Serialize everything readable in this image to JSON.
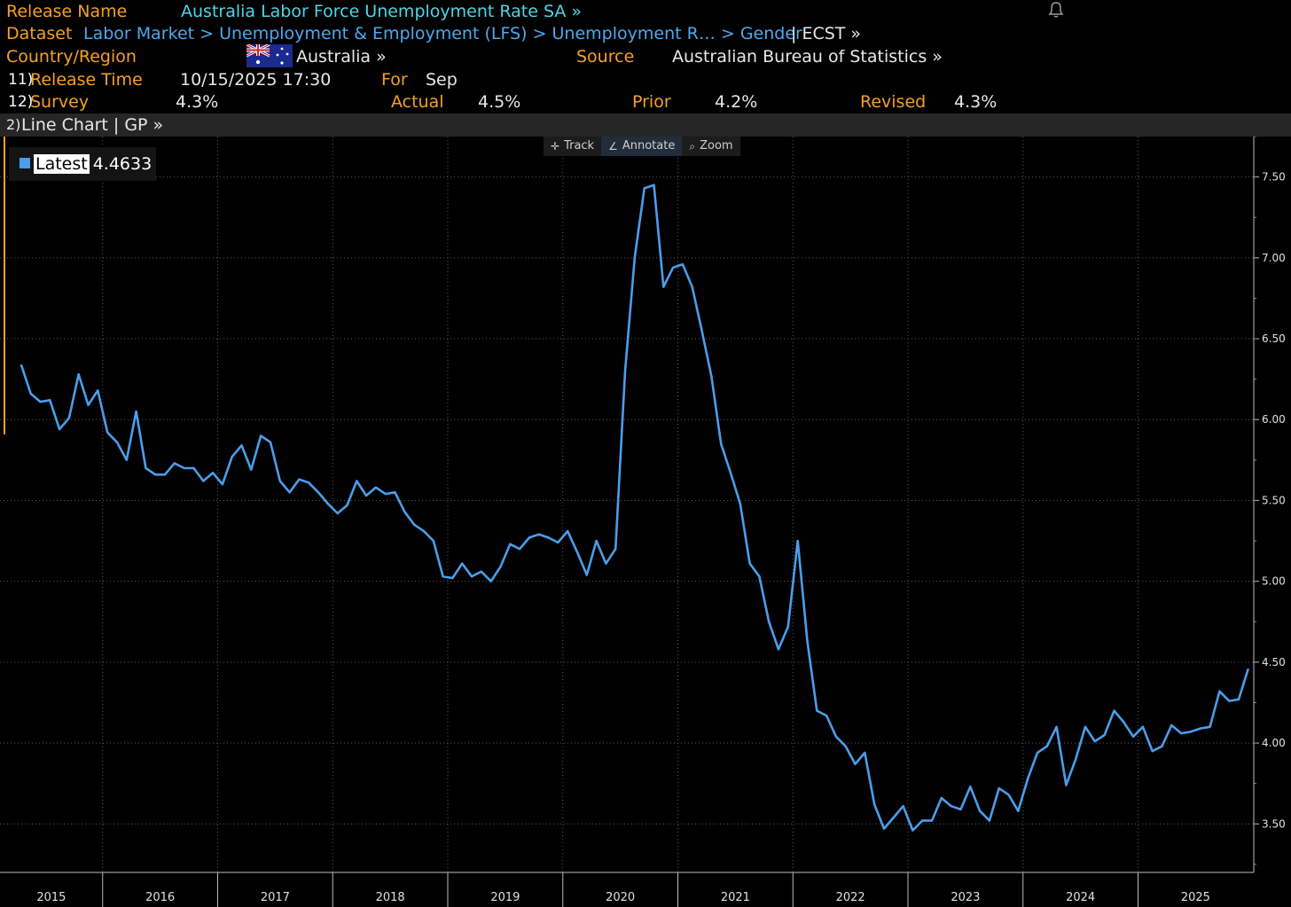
{
  "header": {
    "release_name_label": "Release Name",
    "release_name_value": "Australia Labor Force Unemployment Rate SA »",
    "dataset_label": "Dataset",
    "dataset_path": "Labor Market > Unemployment & Employment (LFS) > Unemployment R… > Gender",
    "dataset_suffix": "| ECST »",
    "country_label": "Country/Region",
    "country_value": "Australia »",
    "source_label": "Source",
    "source_value": "Australian Bureau of Statistics »",
    "release_time_num": "11)",
    "release_time_label": "Release Time",
    "release_time_value": "10/15/2025 17:30",
    "for_label": "For",
    "for_value": "Sep",
    "survey_num": "12)",
    "survey_label": "Survey",
    "survey_value": "4.3%",
    "actual_label": "Actual",
    "actual_value": "4.5%",
    "prior_label": "Prior",
    "prior_value": "4.2%",
    "revised_label": "Revised",
    "revised_value": "4.3%"
  },
  "chart_bar": {
    "num": "2)",
    "label": "Line Chart | GP »"
  },
  "toolbar": {
    "track": "Track",
    "annotate": "Annotate",
    "zoom": "Zoom"
  },
  "legend": {
    "label": "Latest",
    "value": "4.4633"
  },
  "colors": {
    "line": "#4a9eea",
    "orange": "#f6a026",
    "cyan": "#4ed6e6",
    "blue": "#4ea8ee"
  },
  "chart_data": {
    "type": "line",
    "title": "",
    "xlabel": "",
    "ylabel": "",
    "ylim": [
      3.2,
      7.75
    ],
    "y_ticks": [
      3.5,
      4.0,
      4.5,
      5.0,
      5.5,
      6.0,
      6.5,
      7.0,
      7.5
    ],
    "y_tick_labels": [
      "3.50",
      "4.00",
      "4.50",
      "5.00",
      "5.50",
      "6.00",
      "6.50",
      "7.00",
      "7.50"
    ],
    "x_tick_labels": [
      "2015",
      "2016",
      "2017",
      "2018",
      "2019",
      "2020",
      "2021",
      "2022",
      "2023",
      "2024",
      "2025"
    ],
    "x_start": "2015-01",
    "grid": true,
    "series": [
      {
        "values": [
          6.34,
          6.16,
          6.11,
          6.12,
          5.94,
          6.01,
          6.28,
          6.09,
          6.18,
          5.92,
          5.86,
          5.75,
          6.05,
          5.7,
          5.66,
          5.66,
          5.73,
          5.7,
          5.7,
          5.62,
          5.67,
          5.6,
          5.77,
          5.84,
          5.69,
          5.9,
          5.86,
          5.62,
          5.55,
          5.63,
          5.61,
          5.55,
          5.48,
          5.42,
          5.47,
          5.62,
          5.53,
          5.58,
          5.54,
          5.55,
          5.43,
          5.35,
          5.31,
          5.25,
          5.03,
          5.02,
          5.11,
          5.03,
          5.06,
          5.0,
          5.09,
          5.23,
          5.2,
          5.27,
          5.29,
          5.27,
          5.24,
          5.31,
          5.18,
          5.04,
          5.25,
          5.11,
          5.2,
          6.3,
          7.0,
          7.43,
          7.45,
          6.82,
          6.94,
          6.96,
          6.82,
          6.55,
          6.27,
          5.85,
          5.67,
          5.48,
          5.11,
          5.03,
          4.75,
          4.58,
          4.72,
          5.25,
          4.63,
          4.2,
          4.17,
          4.04,
          3.98,
          3.87,
          3.94,
          3.62,
          3.47,
          3.54,
          3.61,
          3.46,
          3.52,
          3.52,
          3.66,
          3.61,
          3.59,
          3.73,
          3.58,
          3.52,
          3.72,
          3.68,
          3.58,
          3.78,
          3.94,
          3.98,
          4.1,
          3.74,
          3.9,
          4.1,
          4.01,
          4.05,
          4.2,
          4.13,
          4.04,
          4.1,
          3.95,
          3.98,
          4.11,
          4.06,
          4.07,
          4.09,
          4.1,
          4.32,
          4.26,
          4.27,
          4.46
        ]
      }
    ]
  }
}
